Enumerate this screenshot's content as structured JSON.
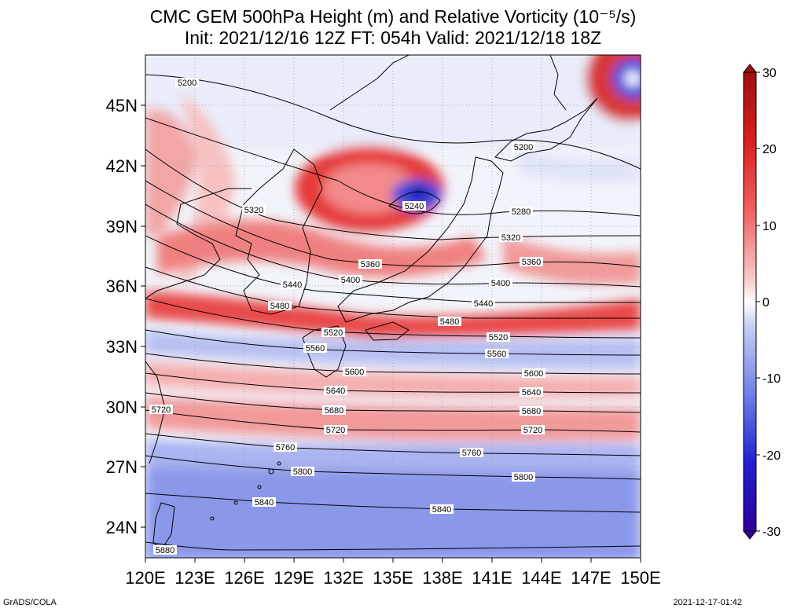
{
  "header": {
    "title_line1": "CMC GEM 500hPa Height (m) and Relative Vorticity (10⁻⁵/s)",
    "title_line2": "Init: 2021/12/16 12Z  FT: 054h  Valid: 2021/12/18 18Z"
  },
  "axes": {
    "x_ticks": [
      "120E",
      "123E",
      "126E",
      "129E",
      "132E",
      "135E",
      "138E",
      "141E",
      "144E",
      "147E",
      "150E"
    ],
    "y_ticks": [
      "45N",
      "42N",
      "39N",
      "36N",
      "33N",
      "30N",
      "27N",
      "24N"
    ]
  },
  "colorbar": {
    "ticks": [
      "30",
      "20",
      "10",
      "0",
      "-10",
      "-20",
      "-30"
    ],
    "colors": [
      "#a01010",
      "#d82020",
      "#f06060",
      "#f8b0b0",
      "#ffffff",
      "#b8c4f0",
      "#7080e8",
      "#2020d0",
      "#30009a"
    ]
  },
  "contours": [
    {
      "label": "5200",
      "positions": [
        [
          238,
          105
        ],
        [
          666,
          187
        ]
      ]
    },
    {
      "label": "5240",
      "positions": [
        [
          527,
          262
        ]
      ]
    },
    {
      "label": "5280",
      "positions": [
        [
          663,
          269
        ]
      ]
    },
    {
      "label": "5320",
      "positions": [
        [
          323,
          267
        ],
        [
          650,
          302
        ]
      ]
    },
    {
      "label": "5360",
      "positions": [
        [
          471,
          336
        ],
        [
          676,
          333
        ]
      ]
    },
    {
      "label": "5400",
      "positions": [
        [
          446,
          356
        ],
        [
          637,
          360
        ]
      ]
    },
    {
      "label": "5440",
      "positions": [
        [
          372,
          362
        ],
        [
          615,
          386
        ]
      ]
    },
    {
      "label": "5480",
      "positions": [
        [
          356,
          389
        ],
        [
          572,
          409
        ]
      ]
    },
    {
      "label": "5520",
      "positions": [
        [
          424,
          423
        ],
        [
          634,
          429
        ]
      ]
    },
    {
      "label": "5560",
      "positions": [
        [
          401,
          443
        ],
        [
          632,
          450
        ]
      ]
    },
    {
      "label": "5600",
      "positions": [
        [
          451,
          473
        ],
        [
          679,
          475
        ]
      ]
    },
    {
      "label": "5640",
      "positions": [
        [
          427,
          497
        ],
        [
          676,
          499
        ]
      ]
    },
    {
      "label": "5680",
      "positions": [
        [
          425,
          522
        ],
        [
          676,
          523
        ]
      ]
    },
    {
      "label": "5720",
      "positions": [
        [
          205,
          521
        ],
        [
          427,
          547
        ],
        [
          678,
          547
        ]
      ]
    },
    {
      "label": "5760",
      "positions": [
        [
          363,
          569
        ],
        [
          600,
          576
        ]
      ]
    },
    {
      "label": "5800",
      "positions": [
        [
          385,
          600
        ],
        [
          666,
          607
        ]
      ]
    },
    {
      "label": "5840",
      "positions": [
        [
          336,
          639
        ],
        [
          562,
          648
        ]
      ]
    },
    {
      "label": "5880",
      "positions": [
        [
          210,
          700
        ]
      ]
    }
  ],
  "footer": {
    "credit": "GrADS/COLA",
    "timestamp": "2021-12-17-01:42"
  }
}
